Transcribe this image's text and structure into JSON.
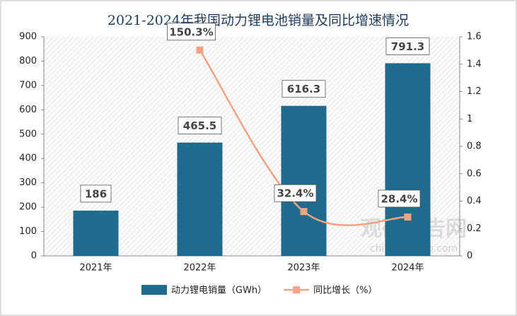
{
  "chart_data": {
    "type": "combo",
    "title": "2021-2024年我国动力锂电池销量及同比增速情况",
    "categories": [
      "2021年",
      "2022年",
      "2023年",
      "2024年"
    ],
    "series": [
      {
        "name": "动力锂电销量（GWh）",
        "type": "bar",
        "color": "#1f6b8e",
        "values": [
          186,
          465.5,
          616.3,
          791.3
        ]
      },
      {
        "name": "同比增长（%）",
        "type": "line",
        "axis": "y2",
        "color": "#f2a383",
        "values": [
          null,
          1.503,
          0.324,
          0.284
        ],
        "value_labels": [
          null,
          "150.3%",
          "32.4%",
          "28.4%"
        ]
      }
    ],
    "ylim": [
      0,
      900
    ],
    "yticks": [
      0,
      100,
      200,
      300,
      400,
      500,
      600,
      700,
      800,
      900
    ],
    "y2lim": [
      0,
      1.6
    ],
    "y2ticks": [
      0,
      0.2,
      0.4,
      0.6,
      0.8,
      1,
      1.2,
      1.4,
      1.6
    ],
    "legend": "bottom",
    "watermark": [
      "观研报告网",
      "chinabaogao.com"
    ]
  }
}
